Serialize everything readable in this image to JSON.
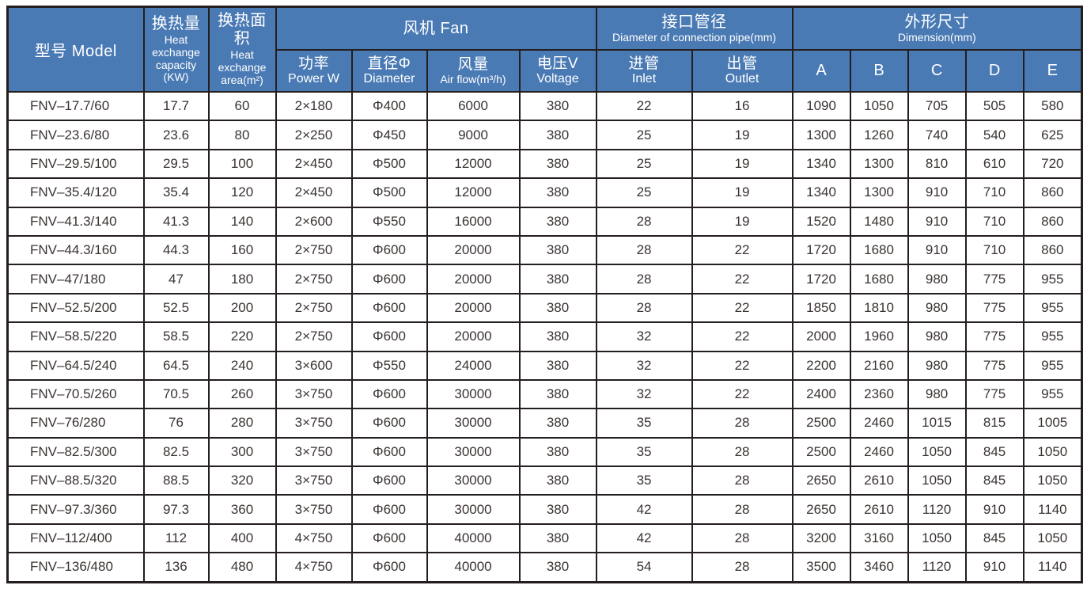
{
  "colors": {
    "header_bg": "#4A7AB4",
    "header_text": "#FFFFFF",
    "border": "#241E1E",
    "cell_text": "#3A3331",
    "row_bg": "#FFFFFF"
  },
  "table": {
    "columns": [
      "model",
      "heat-exchange-capacity",
      "heat-exchange-area",
      "fan-power",
      "fan-diameter",
      "fan-airflow",
      "fan-voltage",
      "pipe-inlet",
      "pipe-outlet",
      "dim-a",
      "dim-b",
      "dim-c",
      "dim-d",
      "dim-e"
    ],
    "header": {
      "model": "型号 Model",
      "capacity": {
        "zh": "换热量",
        "en": "Heat exchange capacity (KW)"
      },
      "area": {
        "zh": "换热面积",
        "en": "Heat exchange area(m²)"
      },
      "fan": "风机 Fan",
      "pipe": {
        "zh": "接口管径",
        "en": "Diameter of connection pipe(mm)"
      },
      "dimension": {
        "zh": "外形尺寸",
        "en": "Dimension(mm)"
      },
      "power": {
        "zh": "功率",
        "en": "Power W"
      },
      "diameter": {
        "zh": "直径Φ",
        "en": "Diameter"
      },
      "airflow": {
        "zh": "风量",
        "en": "Air flow(m³/h)"
      },
      "voltage": {
        "zh": "电压V",
        "en": "Voltage"
      },
      "inlet": {
        "zh": "进管",
        "en": "Inlet"
      },
      "outlet": {
        "zh": "出管",
        "en": "Outlet"
      },
      "dims": [
        "A",
        "B",
        "C",
        "D",
        "E"
      ]
    },
    "rows": [
      [
        "FNV–17.7/60",
        "17.7",
        "60",
        "2×180",
        "Φ400",
        "6000",
        "380",
        "22",
        "16",
        "1090",
        "1050",
        "705",
        "505",
        "580"
      ],
      [
        "FNV–23.6/80",
        "23.6",
        "80",
        "2×250",
        "Φ450",
        "9000",
        "380",
        "25",
        "19",
        "1300",
        "1260",
        "740",
        "540",
        "625"
      ],
      [
        "FNV–29.5/100",
        "29.5",
        "100",
        "2×450",
        "Φ500",
        "12000",
        "380",
        "25",
        "19",
        "1340",
        "1300",
        "810",
        "610",
        "720"
      ],
      [
        "FNV–35.4/120",
        "35.4",
        "120",
        "2×450",
        "Φ500",
        "12000",
        "380",
        "25",
        "19",
        "1340",
        "1300",
        "910",
        "710",
        "860"
      ],
      [
        "FNV–41.3/140",
        "41.3",
        "140",
        "2×600",
        "Φ550",
        "16000",
        "380",
        "28",
        "19",
        "1520",
        "1480",
        "910",
        "710",
        "860"
      ],
      [
        "FNV–44.3/160",
        "44.3",
        "160",
        "2×750",
        "Φ600",
        "20000",
        "380",
        "28",
        "22",
        "1720",
        "1680",
        "910",
        "710",
        "860"
      ],
      [
        "FNV–47/180",
        "47",
        "180",
        "2×750",
        "Φ600",
        "20000",
        "380",
        "28",
        "22",
        "1720",
        "1680",
        "980",
        "775",
        "955"
      ],
      [
        "FNV–52.5/200",
        "52.5",
        "200",
        "2×750",
        "Φ600",
        "20000",
        "380",
        "28",
        "22",
        "1850",
        "1810",
        "980",
        "775",
        "955"
      ],
      [
        "FNV–58.5/220",
        "58.5",
        "220",
        "2×750",
        "Φ600",
        "20000",
        "380",
        "32",
        "22",
        "2000",
        "1960",
        "980",
        "775",
        "955"
      ],
      [
        "FNV–64.5/240",
        "64.5",
        "240",
        "3×600",
        "Φ550",
        "24000",
        "380",
        "32",
        "22",
        "2200",
        "2160",
        "980",
        "775",
        "955"
      ],
      [
        "FNV–70.5/260",
        "70.5",
        "260",
        "3×750",
        "Φ600",
        "30000",
        "380",
        "32",
        "22",
        "2400",
        "2360",
        "980",
        "775",
        "955"
      ],
      [
        "FNV–76/280",
        "76",
        "280",
        "3×750",
        "Φ600",
        "30000",
        "380",
        "35",
        "28",
        "2500",
        "2460",
        "1015",
        "815",
        "1005"
      ],
      [
        "FNV–82.5/300",
        "82.5",
        "300",
        "3×750",
        "Φ600",
        "30000",
        "380",
        "35",
        "28",
        "2500",
        "2460",
        "1050",
        "845",
        "1050"
      ],
      [
        "FNV–88.5/320",
        "88.5",
        "320",
        "3×750",
        "Φ600",
        "30000",
        "380",
        "35",
        "28",
        "2650",
        "2610",
        "1050",
        "845",
        "1050"
      ],
      [
        "FNV–97.3/360",
        "97.3",
        "360",
        "3×750",
        "Φ600",
        "30000",
        "380",
        "42",
        "28",
        "2650",
        "2610",
        "1120",
        "910",
        "1140"
      ],
      [
        "FNV–112/400",
        "112",
        "400",
        "4×750",
        "Φ600",
        "40000",
        "380",
        "42",
        "28",
        "3200",
        "3160",
        "1050",
        "845",
        "1050"
      ],
      [
        "FNV–136/480",
        "136",
        "480",
        "4×750",
        "Φ600",
        "40000",
        "380",
        "54",
        "28",
        "3500",
        "3460",
        "1120",
        "910",
        "1140"
      ]
    ]
  }
}
